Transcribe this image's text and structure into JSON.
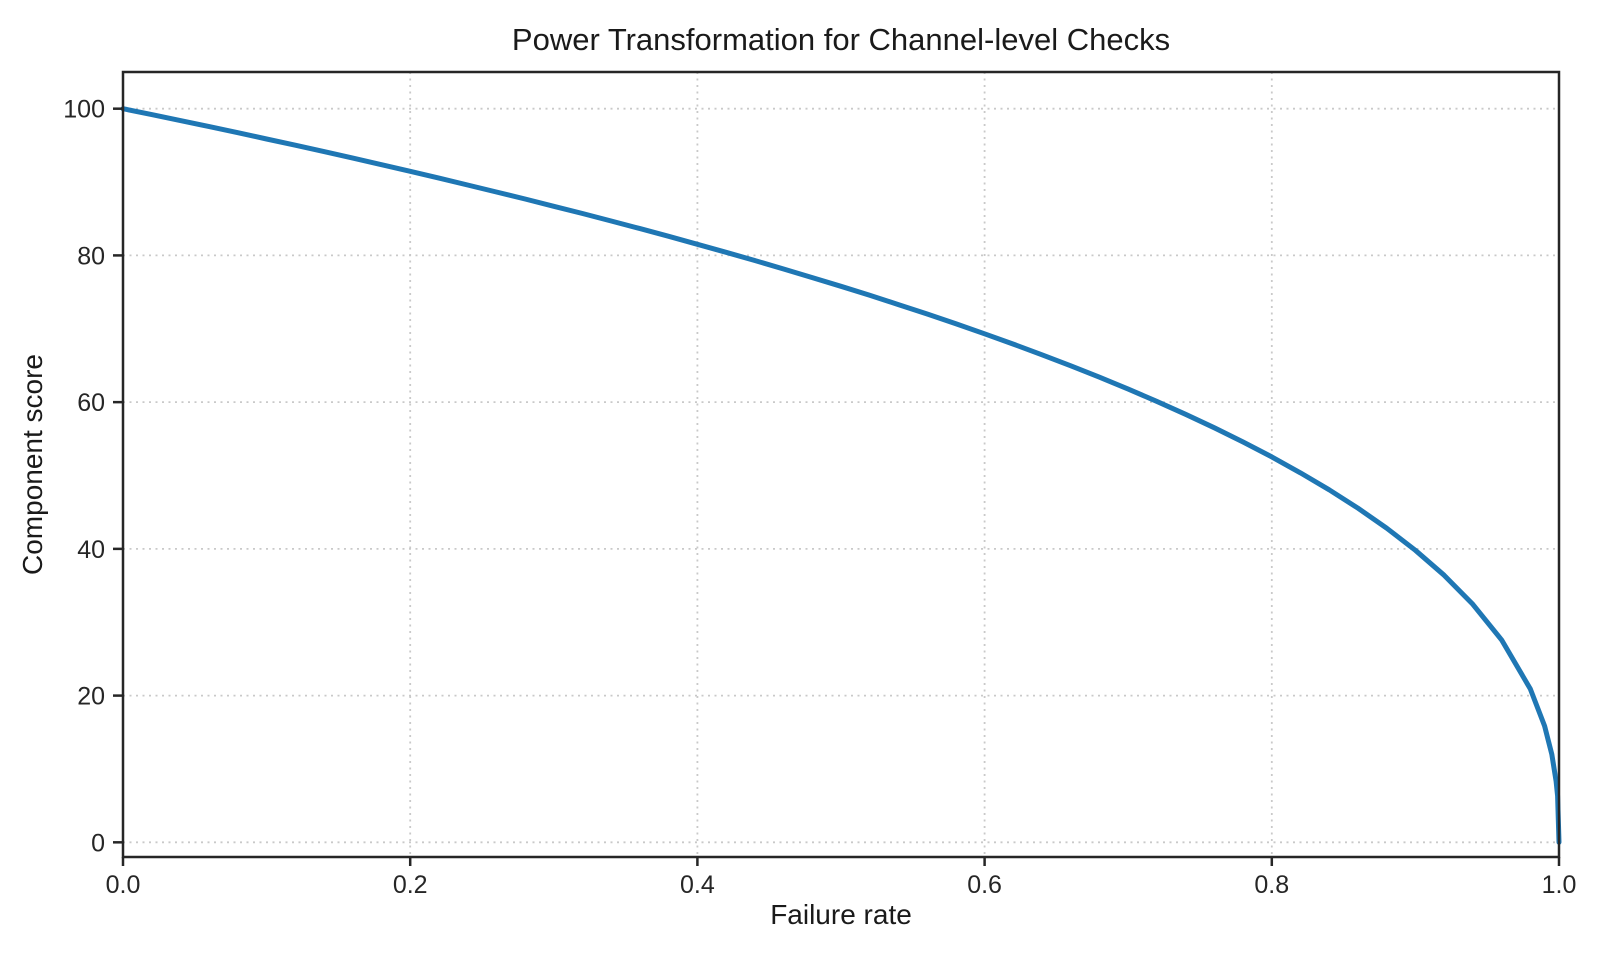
{
  "page": {
    "background_color": "#ffffff"
  },
  "style": {
    "text_color": "#1a1a1a",
    "tick_text_color": "#262626",
    "grid_color": "#c9c9c9",
    "spine_color": "#262626",
    "accent_blue": "#1f77b4"
  },
  "chart_data": {
    "type": "line",
    "title": "Power Transformation for Channel-level Checks",
    "xlabel": "Failure rate",
    "ylabel": "Component score",
    "xlim": [
      0.0,
      1.0
    ],
    "ylim": [
      -2,
      105
    ],
    "x_ticks": [
      0.0,
      0.2,
      0.4,
      0.6,
      0.8,
      1.0
    ],
    "x_tick_labels": [
      "0.0",
      "0.2",
      "0.4",
      "0.6",
      "0.8",
      "1.0"
    ],
    "y_ticks": [
      0,
      20,
      40,
      60,
      80,
      100
    ],
    "y_tick_labels": [
      "0",
      "20",
      "40",
      "60",
      "80",
      "100"
    ],
    "grid": "dotted",
    "legend_position": "none",
    "series": [
      {
        "name": "component-score-curve",
        "color": "#1f77b4",
        "line_width": 5,
        "points": [
          [
            0.0,
            100.0
          ],
          [
            0.02,
            99.19
          ],
          [
            0.04,
            98.38
          ],
          [
            0.06,
            97.56
          ],
          [
            0.08,
            96.72
          ],
          [
            0.1,
            95.87
          ],
          [
            0.12,
            95.02
          ],
          [
            0.14,
            94.15
          ],
          [
            0.16,
            93.26
          ],
          [
            0.18,
            92.37
          ],
          [
            0.2,
            91.46
          ],
          [
            0.22,
            90.54
          ],
          [
            0.24,
            89.6
          ],
          [
            0.26,
            88.65
          ],
          [
            0.28,
            87.69
          ],
          [
            0.3,
            86.7
          ],
          [
            0.32,
            85.71
          ],
          [
            0.34,
            84.69
          ],
          [
            0.36,
            83.65
          ],
          [
            0.38,
            82.6
          ],
          [
            0.4,
            81.52
          ],
          [
            0.42,
            80.42
          ],
          [
            0.44,
            79.3
          ],
          [
            0.46,
            78.15
          ],
          [
            0.48,
            76.98
          ],
          [
            0.5,
            75.79
          ],
          [
            0.52,
            74.56
          ],
          [
            0.54,
            73.3
          ],
          [
            0.56,
            72.01
          ],
          [
            0.58,
            70.68
          ],
          [
            0.6,
            69.31
          ],
          [
            0.62,
            67.91
          ],
          [
            0.64,
            66.45
          ],
          [
            0.66,
            64.95
          ],
          [
            0.68,
            63.4
          ],
          [
            0.7,
            61.78
          ],
          [
            0.72,
            60.1
          ],
          [
            0.74,
            58.34
          ],
          [
            0.76,
            56.5
          ],
          [
            0.78,
            54.57
          ],
          [
            0.8,
            52.53
          ],
          [
            0.82,
            50.36
          ],
          [
            0.84,
            48.05
          ],
          [
            0.86,
            45.55
          ],
          [
            0.88,
            42.82
          ],
          [
            0.9,
            39.81
          ],
          [
            0.92,
            36.41
          ],
          [
            0.94,
            32.45
          ],
          [
            0.96,
            27.59
          ],
          [
            0.98,
            20.91
          ],
          [
            0.99,
            15.85
          ],
          [
            0.995,
            12.01
          ],
          [
            0.998,
            8.33
          ],
          [
            0.999,
            6.31
          ],
          [
            1.0,
            0.0
          ]
        ]
      }
    ]
  }
}
